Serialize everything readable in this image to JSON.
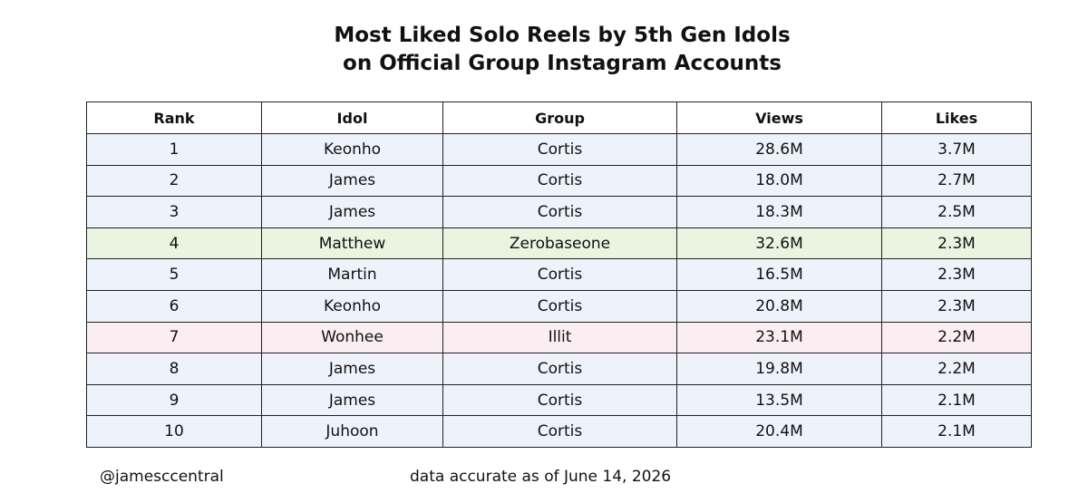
{
  "chart_data": {
    "type": "table",
    "title_lines": [
      "Most Liked Solo Reels by 5th Gen Idols",
      "on Official Group Instagram Accounts"
    ],
    "columns": [
      "Rank",
      "Idol",
      "Group",
      "Views",
      "Likes"
    ],
    "rows": [
      {
        "rank": "1",
        "idol": "Keonho",
        "group": "Cortis",
        "views": "28.6M",
        "likes": "3.7M",
        "color": "#eef3fb"
      },
      {
        "rank": "2",
        "idol": "James",
        "group": "Cortis",
        "views": "18.0M",
        "likes": "2.7M",
        "color": "#eef3fb"
      },
      {
        "rank": "3",
        "idol": "James",
        "group": "Cortis",
        "views": "18.3M",
        "likes": "2.5M",
        "color": "#eef3fb"
      },
      {
        "rank": "4",
        "idol": "Matthew",
        "group": "Zerobaseone",
        "views": "32.6M",
        "likes": "2.3M",
        "color": "#eaf4e1"
      },
      {
        "rank": "5",
        "idol": "Martin",
        "group": "Cortis",
        "views": "16.5M",
        "likes": "2.3M",
        "color": "#eef3fb"
      },
      {
        "rank": "6",
        "idol": "Keonho",
        "group": "Cortis",
        "views": "20.8M",
        "likes": "2.3M",
        "color": "#eef3fb"
      },
      {
        "rank": "7",
        "idol": "Wonhee",
        "group": "Illit",
        "views": "23.1M",
        "likes": "2.2M",
        "color": "#fbeef2"
      },
      {
        "rank": "8",
        "idol": "James",
        "group": "Cortis",
        "views": "19.8M",
        "likes": "2.2M",
        "color": "#eef3fb"
      },
      {
        "rank": "9",
        "idol": "James",
        "group": "Cortis",
        "views": "13.5M",
        "likes": "2.1M",
        "color": "#eef3fb"
      },
      {
        "rank": "10",
        "idol": "Juhoon",
        "group": "Cortis",
        "views": "20.4M",
        "likes": "2.1M",
        "color": "#eef3fb"
      }
    ]
  },
  "footer": {
    "handle": "@jamesccentral",
    "note": "data accurate as of June 14, 2026"
  }
}
